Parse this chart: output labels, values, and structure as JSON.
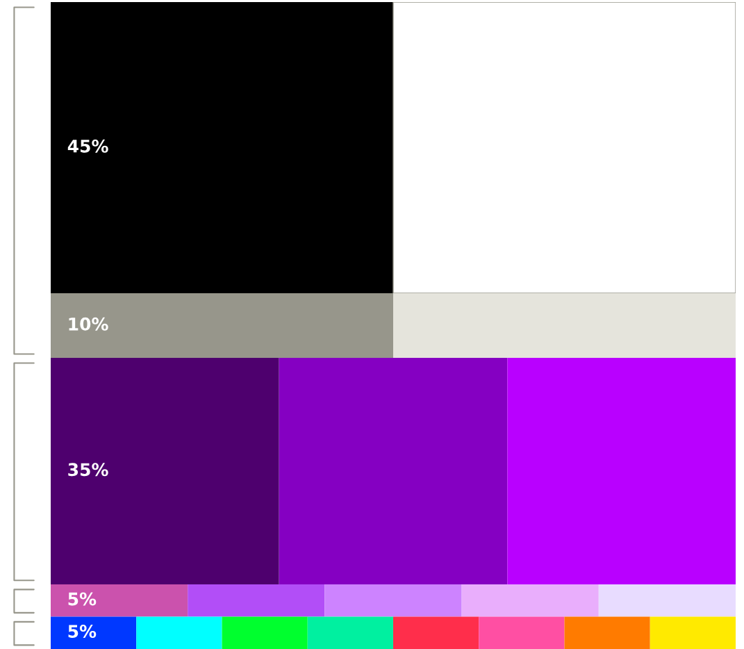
{
  "chart_data": {
    "type": "other",
    "values": [
      45,
      10,
      35,
      5,
      5
    ],
    "value_labels": [
      "45%",
      "10%",
      "35%",
      "5%",
      "5%"
    ],
    "colors": [
      [
        "#000000",
        "#ffffff"
      ],
      [
        "#97968b",
        "#e5e4dc"
      ],
      [
        "#4e006e",
        "#8500c2",
        "#b900ff"
      ],
      [
        "#cb52ad",
        "#b24ef7",
        "#cd83ff",
        "#e9aefc",
        "#e8dcff"
      ],
      [
        "#0038ff",
        "#00ffff",
        "#00ff2e",
        "#00f0a0",
        "#ff2e4b",
        "#ff4fa3",
        "#ff7b00",
        "#ffea00"
      ]
    ]
  }
}
